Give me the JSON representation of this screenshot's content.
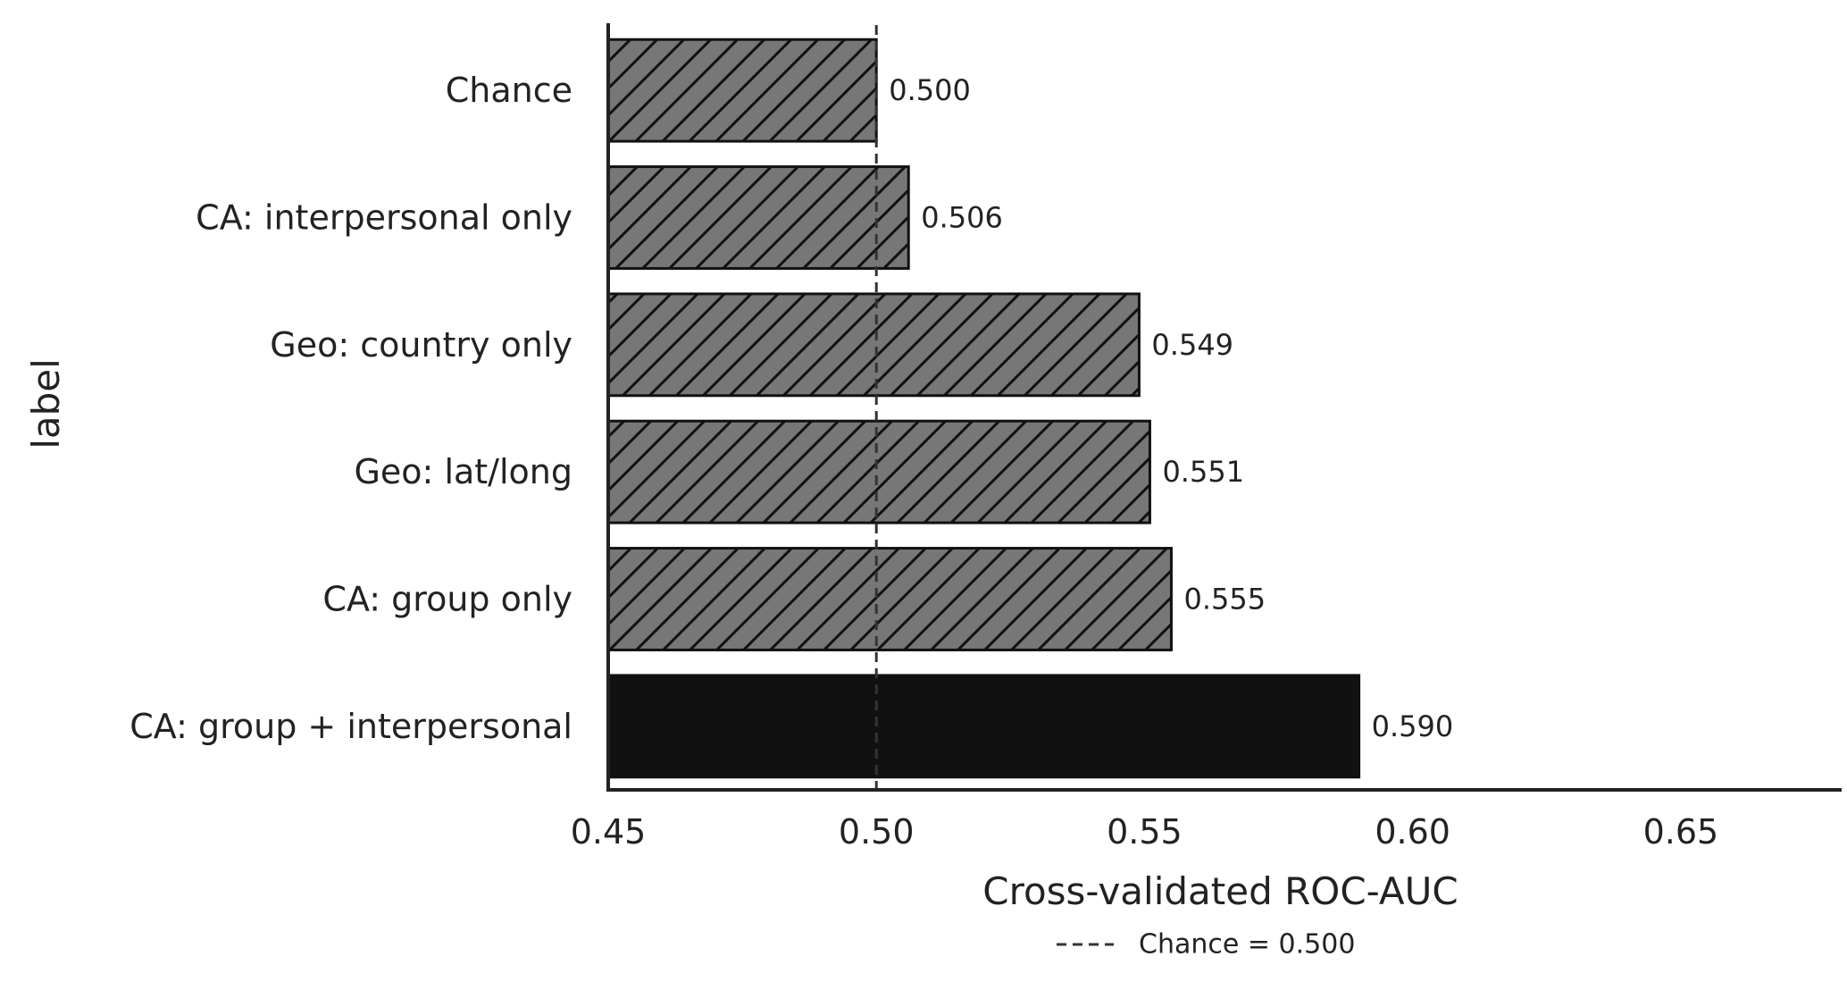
{
  "chart_data": {
    "type": "bar",
    "orientation": "horizontal",
    "categories": [
      "Chance",
      "CA: interpersonal only",
      "Geo: country only",
      "Geo: lat/long",
      "CA: group only",
      "CA: group + interpersonal"
    ],
    "values": [
      0.5,
      0.506,
      0.549,
      0.551,
      0.555,
      0.59
    ],
    "data_labels": [
      "0.500",
      "0.506",
      "0.549",
      "0.551",
      "0.555",
      "0.590"
    ],
    "bar_styles": [
      "hatched",
      "hatched",
      "hatched",
      "hatched",
      "hatched",
      "solid"
    ],
    "xlabel": "Cross-validated ROC-AUC",
    "ylabel": "label",
    "xlim": [
      0.45,
      0.68
    ],
    "xticks": [
      0.45,
      0.5,
      0.55,
      0.6,
      0.65
    ],
    "xtick_labels": [
      "0.45",
      "0.50",
      "0.55",
      "0.60",
      "0.65"
    ],
    "reference_line": {
      "value": 0.5,
      "style": "dashed",
      "legend_label": "Chance = 0.500"
    },
    "legend_placement": "below-center",
    "grid": false,
    "colors": {
      "hatched_bar": "#777777",
      "solid_bar": "#111111",
      "edge": "#111111",
      "axis": "#222222"
    }
  }
}
